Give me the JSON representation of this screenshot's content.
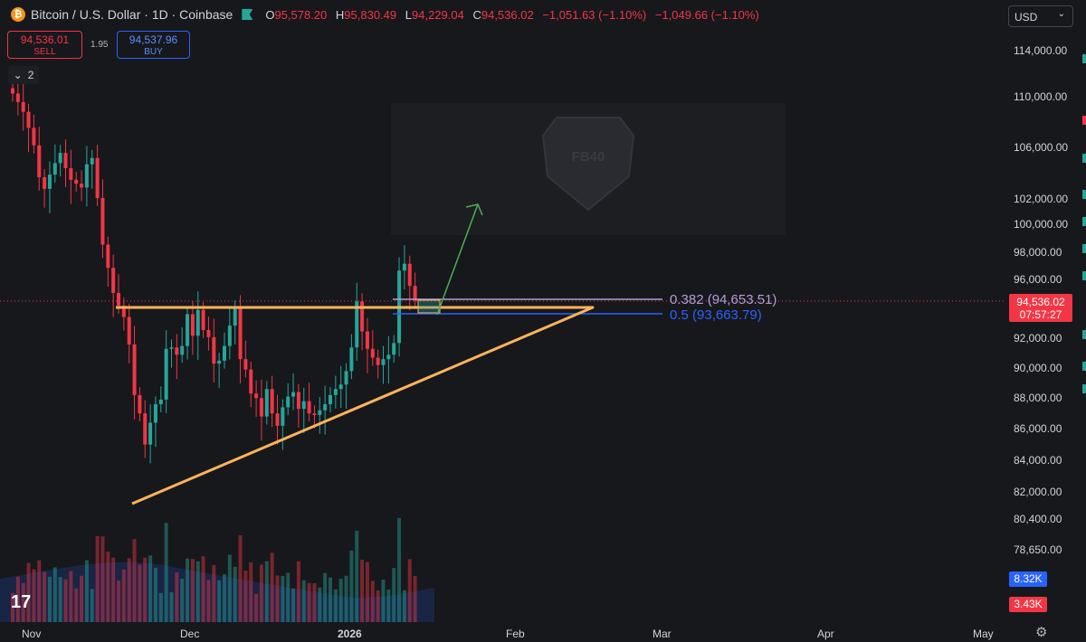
{
  "header": {
    "coin_glyph": "₿",
    "symbol": "Bitcoin / U.S. Dollar · 1D · Coinbase",
    "open_key": "O",
    "open": "95,578.20",
    "high_key": "H",
    "high": "95,830.49",
    "low_key": "L",
    "low": "94,229.04",
    "close_key": "C",
    "close": "94,536.02",
    "change": "−1,051.63 (−1.10%)",
    "change2": "−1,049.66 (−1.10%)"
  },
  "trade": {
    "sell_price": "94,536.01",
    "sell_label": "SELL",
    "spread": "1.95",
    "buy_price": "94,537.96",
    "buy_label": "BUY",
    "collapse_glyph": "⌄",
    "indicator_count": "2"
  },
  "currency": {
    "label": "USD",
    "chevron": "⌄"
  },
  "price_axis": {
    "labels": [
      "114,000.00",
      "110,000.00",
      "106,000.00",
      "102,000.00",
      "100,000.00",
      "98,000.00",
      "96,000.00",
      "92,000.00",
      "90,000.00",
      "88,000.00",
      "86,000.00",
      "84,000.00",
      "82,000.00",
      "80,400.00",
      "78,650.00"
    ],
    "last_price": "94,536.02",
    "countdown": "07:57:27",
    "vol_buy": "8.32K",
    "vol_sell": "3.43K"
  },
  "time_axis": {
    "labels": [
      "Nov",
      "Dec",
      "2026",
      "Feb",
      "Mar",
      "Apr",
      "May"
    ]
  },
  "fib": {
    "l382": "0.382 (94,653.51)",
    "l05": "0.5 (93,663.79)"
  },
  "colors": {
    "up": "#26a69a",
    "down": "#f23645",
    "triangle": "#ffb35c",
    "fib382": "#b39ddb",
    "fib05": "#2962ff",
    "arrow": "#4caf50",
    "background": "#17181c"
  },
  "watermark_text": "FB40",
  "logo_text": "17",
  "chart_data": {
    "type": "candlestick",
    "title": "Bitcoin / U.S. Dollar · 1D · Coinbase",
    "xlabel": "",
    "ylabel": "",
    "x_range": [
      "2025-11-01",
      "2026-05-15"
    ],
    "y_range": [
      77500,
      117000
    ],
    "y_scale": "log",
    "last_close": 94536.02,
    "ohlc_last": {
      "open": 95578.2,
      "high": 95830.49,
      "low": 94229.04,
      "close": 94536.02
    },
    "closes": [
      110400,
      109700,
      108900,
      107600,
      106200,
      103700,
      102800,
      103900,
      104800,
      105600,
      104400,
      103500,
      103200,
      102900,
      104700,
      105200,
      102100,
      98600,
      96900,
      95100,
      94200,
      93400,
      91500,
      88100,
      86900,
      84900,
      86300,
      87500,
      87800,
      91200,
      91300,
      90800,
      91400,
      93600,
      92100,
      93900,
      92500,
      92000,
      90200,
      90400,
      91400,
      92800,
      94000,
      90500,
      89800,
      88200,
      87900,
      86700,
      88500,
      86900,
      86100,
      87300,
      88000,
      88300,
      87200,
      87700,
      86900,
      86800,
      87100,
      87500,
      88100,
      88500,
      88800,
      89700,
      91300,
      94500,
      92400,
      91200,
      90600,
      90100,
      90500,
      90800,
      91600,
      96700,
      97200,
      95600,
      94536
    ],
    "fib_levels": [
      {
        "ratio": 0.382,
        "price": 94653.51
      },
      {
        "ratio": 0.5,
        "price": 93663.79
      }
    ],
    "triangle": {
      "resistance": 94200,
      "support_from": 81200,
      "support_to": 94100
    },
    "grid": false,
    "legend": "none"
  }
}
